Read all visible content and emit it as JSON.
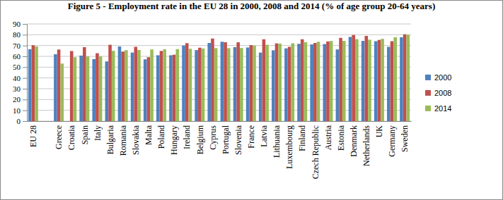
{
  "chart_data": {
    "type": "bar",
    "title": "Figure 5 - Employment rate in the EU 28 in 2000, 2008 and 2014  (% of age group 20-64 years)",
    "categories": [
      "EU 28",
      null,
      "Greece",
      "Croatia",
      "Spain",
      "Italy",
      "Bulgaria",
      "Romania",
      "Slovakia",
      "Malta",
      "Poland",
      "Hungary",
      "Ireland",
      "Belgium",
      "Cyprus",
      "Portugal",
      "Slovenia",
      "France",
      "Latvia",
      "Lithuania",
      "Luxembourg",
      "Finland",
      "Czech Republic",
      "Austria",
      "Estonia",
      "Denmark",
      "Netherlands",
      "UK",
      "Germany",
      "Sweden"
    ],
    "series": [
      {
        "name": "2000",
        "color": "#4f81bd",
        "values": [
          66.6,
          null,
          61.9,
          null,
          60.7,
          57.4,
          55.3,
          69.1,
          63.5,
          57.2,
          61.0,
          61.0,
          70.0,
          65.8,
          72.4,
          73.5,
          68.5,
          68.2,
          63.5,
          65.6,
          67.4,
          71.6,
          71.0,
          71.4,
          66.4,
          78.0,
          74.3,
          74.0,
          68.8,
          77.7
        ]
      },
      {
        "name": "2008",
        "color": "#c0504d",
        "values": [
          70.3,
          null,
          66.3,
          64.9,
          68.5,
          62.9,
          70.7,
          64.4,
          68.8,
          59.2,
          65.0,
          61.5,
          72.2,
          68.0,
          76.5,
          73.1,
          73.0,
          70.4,
          75.8,
          72.0,
          68.8,
          75.8,
          72.4,
          73.8,
          77.1,
          79.8,
          78.9,
          75.2,
          74.0,
          80.4
        ]
      },
      {
        "name": "2014",
        "color": "#9bbb59",
        "values": [
          69.2,
          null,
          53.3,
          59.2,
          59.9,
          59.9,
          65.1,
          65.7,
          65.9,
          66.4,
          66.5,
          66.7,
          67.0,
          67.3,
          67.6,
          67.6,
          67.7,
          69.9,
          70.7,
          71.8,
          72.1,
          73.1,
          73.5,
          74.2,
          74.3,
          75.9,
          75.4,
          76.2,
          77.7,
          80.0
        ]
      }
    ],
    "ylim": [
      0,
      90
    ],
    "yticks": [
      0,
      10,
      20,
      30,
      40,
      50,
      60,
      70,
      80,
      90
    ],
    "grid": true,
    "legend": "right"
  }
}
